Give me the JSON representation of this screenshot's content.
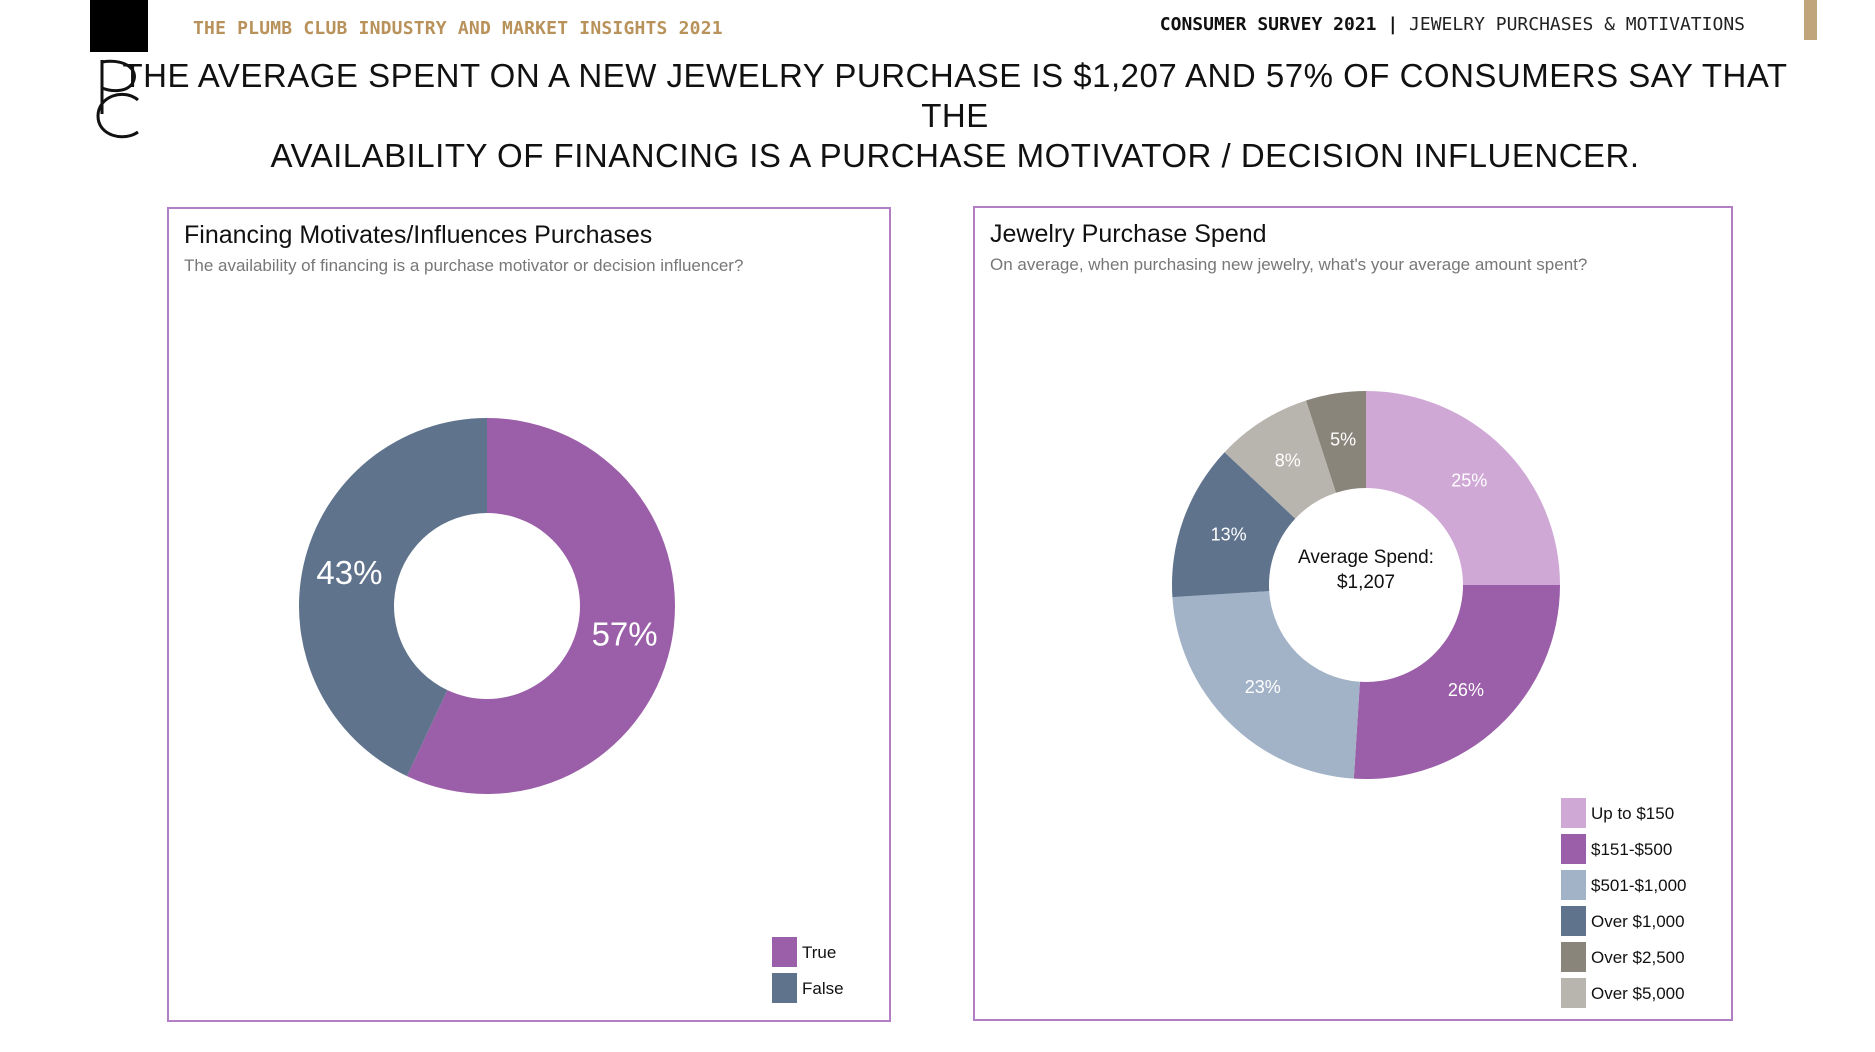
{
  "header": {
    "brand": "THE PLUMB CLUB INDUSTRY AND MARKET INSIGHTS 2021",
    "survey_bold": "CONSUMER SURVEY 2021",
    "survey_sep": " | ",
    "survey_light": "JEWELRY PURCHASES & MOTIVATIONS",
    "headline_line1": "THE AVERAGE SPENT ON A NEW JEWELRY PURCHASE IS $1,207 AND 57% OF CONSUMERS SAY THAT THE",
    "headline_line2": "AVAILABILITY OF FINANCING IS A PURCHASE MOTIVATOR / DECISION INFLUENCER.",
    "logo_letters": "PC"
  },
  "colors": {
    "true": "#9b5ea8",
    "false": "#5f738d",
    "up_to_150": "#cfa8d6",
    "151_500": "#9b5ea8",
    "501_1000": "#a2b3c7",
    "over_1000": "#5f738d",
    "over_2500": "#8a857b",
    "over_5000": "#b8b4ae",
    "panel_border": "#b27fc4",
    "brand_gold": "#b8925a"
  },
  "chart_data": [
    {
      "type": "pie",
      "title": "Financing Motivates/Influences Purchases",
      "subtitle": "The availability of financing is a purchase motivator or decision influencer?",
      "categories": [
        "True",
        "False"
      ],
      "values": [
        57,
        43
      ],
      "labels": [
        "57%",
        "43%"
      ],
      "donut": true,
      "legend": "bottom-right"
    },
    {
      "type": "pie",
      "title": "Jewelry Purchase Spend",
      "subtitle": "On average, when purchasing new jewelry, what's your average amount spent?",
      "categories": [
        "Up to $150",
        "$151-$500",
        "$501-$1,000",
        "Over $1,000",
        "Over $5,000",
        "Over $2,500"
      ],
      "values": [
        25,
        26,
        23,
        13,
        8,
        5
      ],
      "labels": [
        "25%",
        "26%",
        "23%",
        "13%",
        "8%",
        "5%"
      ],
      "center_label_line1": "Average Spend:",
      "center_label_line2": "$1,207",
      "donut": true,
      "legend": "bottom-right",
      "legend_order": [
        "Up to $150",
        "$151-$500",
        "$501-$1,000",
        "Over $1,000",
        "Over $2,500",
        "Over $5,000"
      ]
    }
  ]
}
